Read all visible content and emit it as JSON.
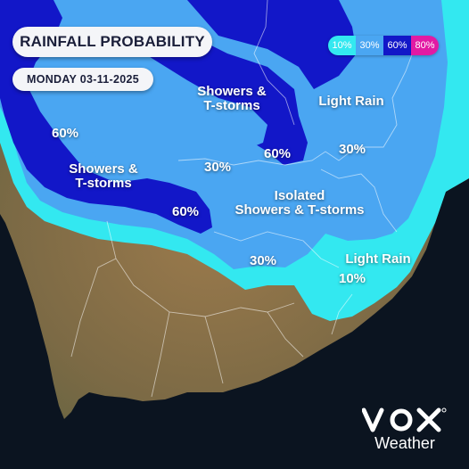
{
  "title": "RAINFALL PROBABILITY",
  "date": "MONDAY 03-11-2025",
  "legend": [
    {
      "label": "10%",
      "color": "#33e8f0",
      "text_color": "#ffffff"
    },
    {
      "label": "30%",
      "color": "#4aa6f2",
      "text_color": "#ffffff"
    },
    {
      "label": "60%",
      "color": "#1217c8",
      "text_color": "#ffffff"
    },
    {
      "label": "80%",
      "color": "#e21aa4",
      "text_color": "#ffffff"
    }
  ],
  "regions": {
    "showers_tstorms_north": {
      "text": "Showers &\nT-storms"
    },
    "showers_tstorms_west": {
      "text": "Showers &\nT-storms"
    },
    "light_rain_northeast": {
      "text": "Light Rain"
    },
    "light_rain_east": {
      "text": "Light Rain"
    },
    "isolated_showers": {
      "text": "Isolated\nShowers & T-storms"
    }
  },
  "percent_labels": {
    "west_60": "60%",
    "central_north_60": "60%",
    "central_60": "60%",
    "central_30": "30%",
    "northeast_30": "30%",
    "south_30": "30%",
    "east_10": "10%"
  },
  "logo": {
    "brand": "vox",
    "text": "Weather"
  },
  "colors": {
    "ocean": "#0b1420",
    "land": "#8a6a42",
    "prob_10": "#33e8f0",
    "prob_30": "#4aa6f2",
    "prob_60": "#1217c8"
  }
}
